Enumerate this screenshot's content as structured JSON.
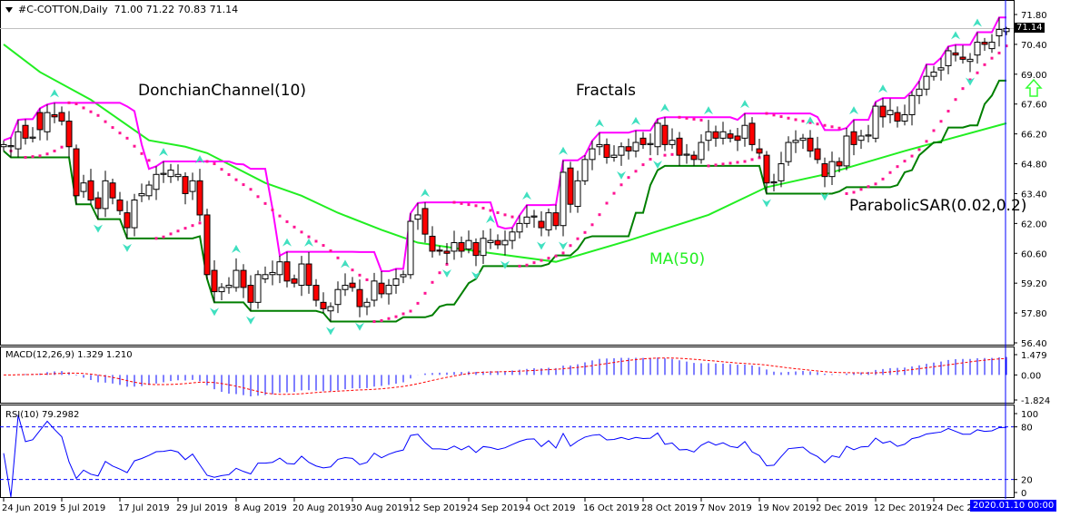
{
  "header": {
    "symbol": "#C-COTTON,Daily",
    "ohlc_text": "71.00 71.22 70.83 71.14"
  },
  "labels": {
    "donchian": "DonchianChannel(10)",
    "fractals": "Fractals",
    "ma": "MA(50)",
    "sar": "ParabolicSAR(0.02,0.2)"
  },
  "current_price": "71.14",
  "crosshair_date": "2020.01.10 00:00",
  "signal_icon": "up-arrow-icon",
  "colors": {
    "bull": "#ffffff",
    "bear": "#ff0000",
    "donchian_upper": "#ff00ff",
    "donchian_lower": "#007f00",
    "ma": "#22ee22",
    "sar": "#ff1493",
    "fractal": "#40e0c0",
    "macd_hist": "#0000ff",
    "macd_signal": "#ff0000",
    "rsi": "#0000ff",
    "crosshair": "#0000ff",
    "signal_arrow": "#33ff33"
  },
  "macd": {
    "label": "MACD(12,26,9) 1.329 1.210",
    "ticks": [
      "1.479",
      "0.00",
      "-1.824"
    ],
    "range": [
      -1.824,
      1.479
    ]
  },
  "rsi": {
    "label": "RSI(10) 79.2982",
    "ticks": [
      "100",
      "80",
      "20",
      "0"
    ],
    "levels": [
      80,
      20
    ]
  },
  "chart_data": {
    "type": "candlestick",
    "title": "#C-COTTON,Daily",
    "ylim": [
      56.4,
      71.8
    ],
    "y_ticks": [
      "71.80",
      "70.40",
      "69.00",
      "67.60",
      "66.20",
      "64.80",
      "63.40",
      "62.00",
      "60.60",
      "59.20",
      "57.80",
      "56.40"
    ],
    "x_ticks": [
      {
        "label": "24 Jun 2019",
        "bar": 0
      },
      {
        "label": "5 Jul 2019",
        "bar": 8
      },
      {
        "label": "17 Jul 2019",
        "bar": 16
      },
      {
        "label": "29 Jul 2019",
        "bar": 24
      },
      {
        "label": "8 Aug 2019",
        "bar": 32
      },
      {
        "label": "20 Aug 2019",
        "bar": 40
      },
      {
        "label": "30 Aug 2019",
        "bar": 48
      },
      {
        "label": "12 Sep 2019",
        "bar": 56
      },
      {
        "label": "24 Sep 2019",
        "bar": 64
      },
      {
        "label": "4 Oct 2019",
        "bar": 72
      },
      {
        "label": "16 Oct 2019",
        "bar": 80
      },
      {
        "label": "28 Oct 2019",
        "bar": 88
      },
      {
        "label": "7 Nov 2019",
        "bar": 96
      },
      {
        "label": "19 Nov 2019",
        "bar": 104
      },
      {
        "label": "2 Dec 2019",
        "bar": 112
      },
      {
        "label": "12 Dec 2019",
        "bar": 120
      },
      {
        "label": "24 Dec 2019",
        "bar": 128
      }
    ],
    "last_bar": {
      "open": 71.0,
      "high": 71.22,
      "low": 70.83,
      "close": 71.14
    },
    "open": [
      65.6,
      65.6,
      65.5,
      66.6,
      66.0,
      67.2,
      66.3,
      67.1,
      67.2,
      66.8,
      65.5,
      63.5,
      64.0,
      63.2,
      62.7,
      63.9,
      63.1,
      62.5,
      61.8,
      63.3,
      63.3,
      63.6,
      64.3,
      64.2,
      64.2,
      64.2,
      63.5,
      64.0,
      62.4,
      59.8,
      58.8,
      59.0,
      59.0,
      59.8,
      59.1,
      58.3,
      59.4,
      59.6,
      59.6,
      60.2,
      59.4,
      59.1,
      60.1,
      59.1,
      58.3,
      57.9,
      58.2,
      58.9,
      59.2,
      58.9,
      58.1,
      58.4,
      59.2,
      58.7,
      59.1,
      59.5,
      59.6,
      62.2,
      62.7,
      61.4,
      60.75,
      60.7,
      60.7,
      61.1,
      60.8,
      61.1,
      60.5,
      61.1,
      61.2,
      61.0,
      61.2,
      61.6,
      62.0,
      62.3,
      62.1,
      61.7,
      62.5,
      61.9,
      64.6,
      62.8,
      64.0,
      65.0,
      65.6,
      65.7,
      65.1,
      65.2,
      65.6,
      65.4,
      66.0,
      65.7,
      65.6,
      66.6,
      65.7,
      66.0,
      65.2,
      65.2,
      65.0,
      65.9,
      66.3,
      66.0,
      66.2,
      66.1,
      66.0,
      66.7,
      65.5,
      65.2,
      63.9,
      64.0,
      64.9,
      65.8,
      65.9,
      66.0,
      65.5,
      64.8,
      64.2,
      64.9,
      64.7,
      66.3,
      65.9,
      66.1,
      66.0,
      67.5,
      67.1,
      67.2,
      66.8,
      67.1,
      68.0,
      68.3,
      68.9,
      69.2,
      69.4,
      70.0,
      69.8,
      69.6,
      69.9,
      70.5,
      70.2,
      70.8,
      71.0
    ],
    "close": [
      65.7,
      65.65,
      66.3,
      66.0,
      66.05,
      66.4,
      67.2,
      67.0,
      66.8,
      65.6,
      63.3,
      63.9,
      63.1,
      62.7,
      64.0,
      63.2,
      62.6,
      61.8,
      63.1,
      63.4,
      63.8,
      64.3,
      64.35,
      64.5,
      64.3,
      63.4,
      64.0,
      62.4,
      59.6,
      58.8,
      59.0,
      59.1,
      59.8,
      59.0,
      58.3,
      59.6,
      59.6,
      59.7,
      60.2,
      59.3,
      59.2,
      60.1,
      59.1,
      58.4,
      58.0,
      58.1,
      58.9,
      59.1,
      59.0,
      58.1,
      58.3,
      59.3,
      58.7,
      59.1,
      59.4,
      59.6,
      62.1,
      62.4,
      61.5,
      60.7,
      60.7,
      60.6,
      61.1,
      60.7,
      61.2,
      60.5,
      61.3,
      61.2,
      61.0,
      61.2,
      61.6,
      62.0,
      62.3,
      62.35,
      61.8,
      62.5,
      61.9,
      64.4,
      62.9,
      64.0,
      65.0,
      65.5,
      65.7,
      65.1,
      65.2,
      65.6,
      65.4,
      65.8,
      65.7,
      65.75,
      66.7,
      65.7,
      65.9,
      65.2,
      65.25,
      65.0,
      65.8,
      66.3,
      66.0,
      66.3,
      66.0,
      65.9,
      66.6,
      65.7,
      65.3,
      63.9,
      63.95,
      64.8,
      65.8,
      65.9,
      66.0,
      65.4,
      65.0,
      64.2,
      64.9,
      64.7,
      66.1,
      65.7,
      66.1,
      66.15,
      67.5,
      67.0,
      67.3,
      66.8,
      67.1,
      68.0,
      68.3,
      68.9,
      69.1,
      69.3,
      70.1,
      69.9,
      69.7,
      69.7,
      70.5,
      70.4,
      70.5,
      71.1,
      71.14
    ],
    "ma50": [
      [
        0,
        70.4
      ],
      [
        5,
        69.1
      ],
      [
        12,
        67.8
      ],
      [
        20,
        65.9
      ],
      [
        25,
        65.6
      ],
      [
        28,
        65.3
      ],
      [
        32,
        64.6
      ],
      [
        36,
        63.9
      ],
      [
        41,
        63.3
      ],
      [
        46,
        62.5
      ],
      [
        52,
        61.7
      ],
      [
        57,
        61.1
      ],
      [
        65,
        60.7
      ],
      [
        76,
        60.2
      ],
      [
        86,
        61.2
      ],
      [
        97,
        62.4
      ],
      [
        105,
        63.7
      ],
      [
        113,
        64.3
      ],
      [
        124,
        65.4
      ],
      [
        138,
        66.7
      ]
    ],
    "indicators": [
      "DonchianChannel(10)",
      "Fractals",
      "MA(50)",
      "ParabolicSAR(0.02,0.2)",
      "MACD(12,26,9)",
      "RSI(10)"
    ]
  }
}
